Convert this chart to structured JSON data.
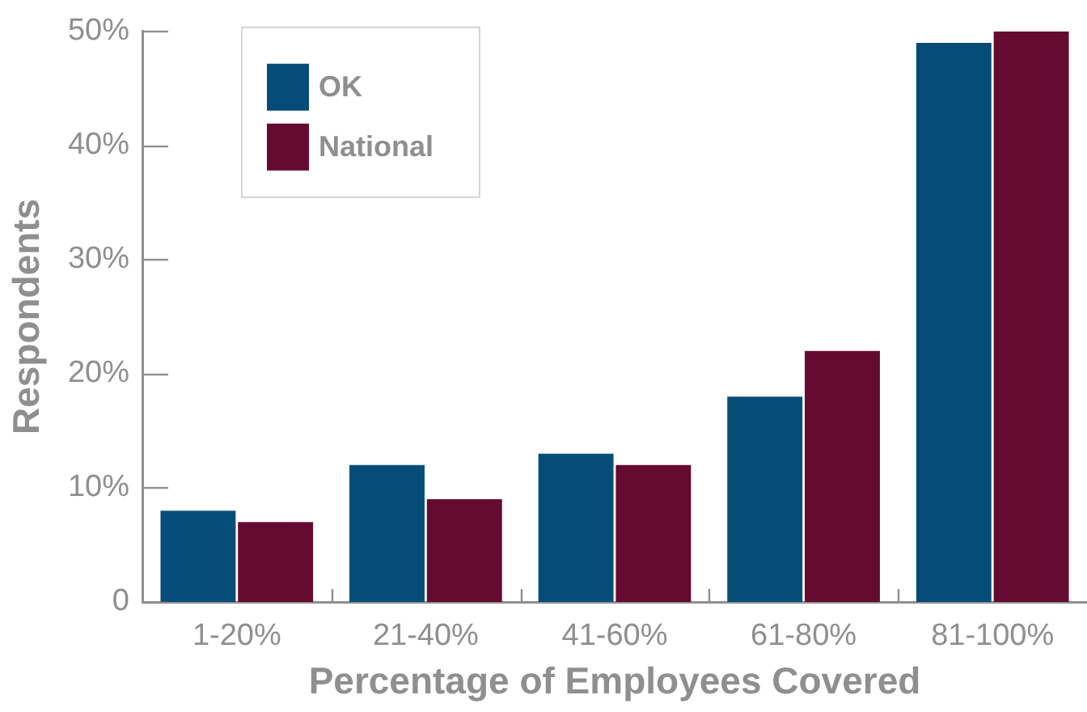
{
  "chart_data": {
    "type": "bar",
    "xlabel": "Percentage of Employees Covered",
    "ylabel": "Respondents",
    "categories": [
      "1-20%",
      "21-40%",
      "41-60%",
      "61-80%",
      "81-100%"
    ],
    "series": [
      {
        "name": "OK",
        "color": "#054d78",
        "values": [
          8,
          12,
          13,
          18,
          49
        ]
      },
      {
        "name": "National",
        "color": "#650a30",
        "values": [
          7,
          9,
          12,
          22,
          50
        ]
      }
    ],
    "ylim": [
      0,
      50
    ],
    "yticks": [
      {
        "value": 0,
        "label": "0"
      },
      {
        "value": 10,
        "label": "10%"
      },
      {
        "value": 20,
        "label": "20%"
      },
      {
        "value": 30,
        "label": "30%"
      },
      {
        "value": 40,
        "label": "40%"
      },
      {
        "value": 50,
        "label": "50%"
      }
    ],
    "grid": false,
    "legend": "top left"
  }
}
